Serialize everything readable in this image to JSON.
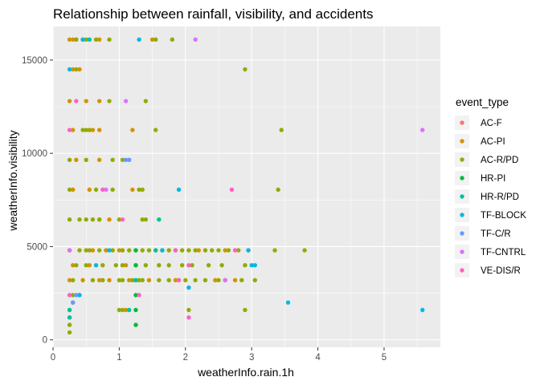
{
  "chart_data": {
    "type": "scatter",
    "title": "Relationship between rainfall, visibility, and accidents",
    "xlabel": "weatherInfo.rain.1h",
    "ylabel": "weatherInfo.visibility",
    "xlim": [
      0,
      5.85
    ],
    "ylim": [
      -400,
      16800
    ],
    "x_ticks": [
      0,
      1,
      2,
      3,
      4,
      5
    ],
    "y_ticks": [
      0,
      5000,
      10000,
      15000
    ],
    "x_tick_labels": [
      "0",
      "1",
      "2",
      "3",
      "4",
      "5"
    ],
    "y_tick_labels": [
      "0",
      "5000",
      "10000",
      "15000"
    ],
    "grid": true,
    "legend_position": "right",
    "legend_title": "event_type",
    "series": [
      {
        "name": "AC-F",
        "color": "#F8766D",
        "points": []
      },
      {
        "name": "AC-PI",
        "color": "#D39200",
        "points": [
          [
            0.25,
            16100
          ],
          [
            0.3,
            16100
          ],
          [
            0.35,
            16100
          ],
          [
            0.45,
            16100
          ],
          [
            0.7,
            16100
          ],
          [
            1.5,
            16100
          ],
          [
            0.3,
            14500
          ],
          [
            0.4,
            14500
          ],
          [
            0.25,
            12800
          ],
          [
            0.5,
            12800
          ],
          [
            0.7,
            12800
          ],
          [
            0.3,
            11250
          ],
          [
            0.6,
            11250
          ],
          [
            0.7,
            11250
          ],
          [
            1.2,
            11250
          ],
          [
            0.35,
            9650
          ],
          [
            0.7,
            9650
          ],
          [
            0.3,
            8050
          ],
          [
            0.55,
            8050
          ],
          [
            1.2,
            8050
          ],
          [
            0.7,
            6450
          ],
          [
            0.85,
            6450
          ],
          [
            0.25,
            4800
          ],
          [
            0.6,
            4800
          ],
          [
            0.8,
            4800
          ],
          [
            1.0,
            4800
          ],
          [
            1.55,
            4800
          ],
          [
            2.2,
            4800
          ],
          [
            2.6,
            4800
          ],
          [
            0.3,
            4000
          ],
          [
            0.55,
            4000
          ],
          [
            1.1,
            4000
          ],
          [
            0.25,
            3200
          ],
          [
            0.45,
            3200
          ],
          [
            0.7,
            3200
          ],
          [
            0.85,
            3200
          ],
          [
            1.15,
            3200
          ],
          [
            1.45,
            3200
          ],
          [
            1.85,
            3200
          ],
          [
            2.45,
            3200
          ],
          [
            2.75,
            3200
          ],
          [
            1.1,
            1600
          ],
          [
            0.3,
            2000
          ]
        ]
      },
      {
        "name": "AC-R/PD",
        "color": "#93AA00",
        "points": [
          [
            0.35,
            16100
          ],
          [
            0.5,
            16100
          ],
          [
            0.65,
            16100
          ],
          [
            0.85,
            16100
          ],
          [
            1.55,
            16100
          ],
          [
            1.8,
            16100
          ],
          [
            2.9,
            14500
          ],
          [
            0.35,
            14500
          ],
          [
            0.85,
            12800
          ],
          [
            1.4,
            12800
          ],
          [
            0.45,
            11250
          ],
          [
            0.5,
            11250
          ],
          [
            0.55,
            11250
          ],
          [
            1.55,
            11250
          ],
          [
            3.45,
            11250
          ],
          [
            0.25,
            9650
          ],
          [
            0.5,
            9650
          ],
          [
            0.9,
            9650
          ],
          [
            1.05,
            9650
          ],
          [
            0.25,
            8050
          ],
          [
            0.65,
            8050
          ],
          [
            0.9,
            8050
          ],
          [
            1.3,
            8050
          ],
          [
            1.35,
            8050
          ],
          [
            3.4,
            8050
          ],
          [
            0.25,
            6450
          ],
          [
            0.4,
            6450
          ],
          [
            0.5,
            6450
          ],
          [
            0.6,
            6450
          ],
          [
            0.7,
            6450
          ],
          [
            1.0,
            6450
          ],
          [
            1.35,
            6450
          ],
          [
            1.4,
            6450
          ],
          [
            0.4,
            4800
          ],
          [
            0.5,
            4800
          ],
          [
            0.55,
            4800
          ],
          [
            0.7,
            4800
          ],
          [
            0.9,
            4800
          ],
          [
            1.05,
            4800
          ],
          [
            1.15,
            4800
          ],
          [
            1.25,
            4800
          ],
          [
            1.35,
            4800
          ],
          [
            1.45,
            4800
          ],
          [
            1.65,
            4800
          ],
          [
            1.75,
            4800
          ],
          [
            1.85,
            4800
          ],
          [
            1.95,
            4800
          ],
          [
            2.05,
            4800
          ],
          [
            2.15,
            4800
          ],
          [
            2.3,
            4800
          ],
          [
            2.4,
            4800
          ],
          [
            2.5,
            4800
          ],
          [
            2.65,
            4800
          ],
          [
            2.8,
            4800
          ],
          [
            2.95,
            4800
          ],
          [
            3.35,
            4800
          ],
          [
            3.8,
            4800
          ],
          [
            0.35,
            4000
          ],
          [
            0.5,
            4000
          ],
          [
            0.75,
            4000
          ],
          [
            0.95,
            4000
          ],
          [
            1.05,
            4000
          ],
          [
            1.25,
            4000
          ],
          [
            1.4,
            4000
          ],
          [
            1.6,
            4000
          ],
          [
            1.75,
            4000
          ],
          [
            1.95,
            4000
          ],
          [
            2.1,
            4000
          ],
          [
            2.35,
            4000
          ],
          [
            2.55,
            4000
          ],
          [
            2.9,
            4000
          ],
          [
            0.3,
            3200
          ],
          [
            0.6,
            3200
          ],
          [
            0.75,
            3200
          ],
          [
            1.0,
            3200
          ],
          [
            1.05,
            3200
          ],
          [
            1.2,
            3200
          ],
          [
            1.3,
            3200
          ],
          [
            1.35,
            3200
          ],
          [
            1.6,
            3200
          ],
          [
            1.75,
            3200
          ],
          [
            1.9,
            3200
          ],
          [
            2.0,
            3200
          ],
          [
            2.15,
            3200
          ],
          [
            2.3,
            3200
          ],
          [
            2.5,
            3200
          ],
          [
            2.6,
            3200
          ],
          [
            2.85,
            3200
          ],
          [
            3.05,
            3200
          ],
          [
            0.3,
            2400
          ],
          [
            0.4,
            2400
          ],
          [
            0.25,
            1600
          ],
          [
            1.0,
            1600
          ],
          [
            1.05,
            1600
          ],
          [
            2.05,
            1600
          ],
          [
            2.9,
            1600
          ],
          [
            0.25,
            800
          ],
          [
            0.25,
            400
          ],
          [
            0.25,
            1200
          ]
        ]
      },
      {
        "name": "HR-PI",
        "color": "#00BA38",
        "points": [
          [
            1.25,
            4800
          ],
          [
            1.25,
            4000
          ],
          [
            1.25,
            3200
          ],
          [
            1.25,
            2400
          ],
          [
            1.25,
            1600
          ],
          [
            1.25,
            800
          ]
        ]
      },
      {
        "name": "HR-R/PD",
        "color": "#00C19F",
        "points": [
          [
            0.55,
            16100
          ],
          [
            1.25,
            3200
          ],
          [
            1.6,
            6450
          ],
          [
            1.55,
            4800
          ],
          [
            1.15,
            1600
          ],
          [
            0.25,
            1600
          ],
          [
            0.25,
            1200
          ]
        ]
      },
      {
        "name": "TF-BLOCK",
        "color": "#00B9E3",
        "points": [
          [
            0.45,
            16100
          ],
          [
            1.3,
            16100
          ],
          [
            0.25,
            14500
          ],
          [
            1.9,
            8050
          ],
          [
            2.95,
            4800
          ],
          [
            3.0,
            4000
          ],
          [
            3.05,
            4000
          ],
          [
            0.65,
            4000
          ],
          [
            0.4,
            2400
          ],
          [
            2.05,
            2800
          ],
          [
            3.55,
            2000
          ],
          [
            5.58,
            1600
          ],
          [
            0.85,
            4800
          ],
          [
            1.65,
            4800
          ]
        ]
      },
      {
        "name": "TF-C/R",
        "color": "#619CFF",
        "points": [
          [
            1.1,
            9650
          ],
          [
            1.15,
            9650
          ],
          [
            0.35,
            2400
          ],
          [
            0.3,
            2000
          ]
        ]
      },
      {
        "name": "TF-CNTRL",
        "color": "#DB72FB",
        "points": [
          [
            2.15,
            16100
          ],
          [
            1.1,
            12800
          ],
          [
            5.58,
            11250
          ],
          [
            0.8,
            8050
          ],
          [
            2.6,
            3200
          ],
          [
            0.25,
            4800
          ]
        ]
      },
      {
        "name": "VE-DIS/R",
        "color": "#FF61C3",
        "points": [
          [
            0.35,
            12800
          ],
          [
            0.25,
            11250
          ],
          [
            0.75,
            8050
          ],
          [
            2.7,
            8050
          ],
          [
            1.05,
            6450
          ],
          [
            2.75,
            4800
          ],
          [
            2.05,
            4000
          ],
          [
            1.85,
            4800
          ],
          [
            1.3,
            2400
          ],
          [
            2.05,
            1200
          ],
          [
            0.25,
            2400
          ],
          [
            1.9,
            3200
          ]
        ]
      }
    ]
  }
}
